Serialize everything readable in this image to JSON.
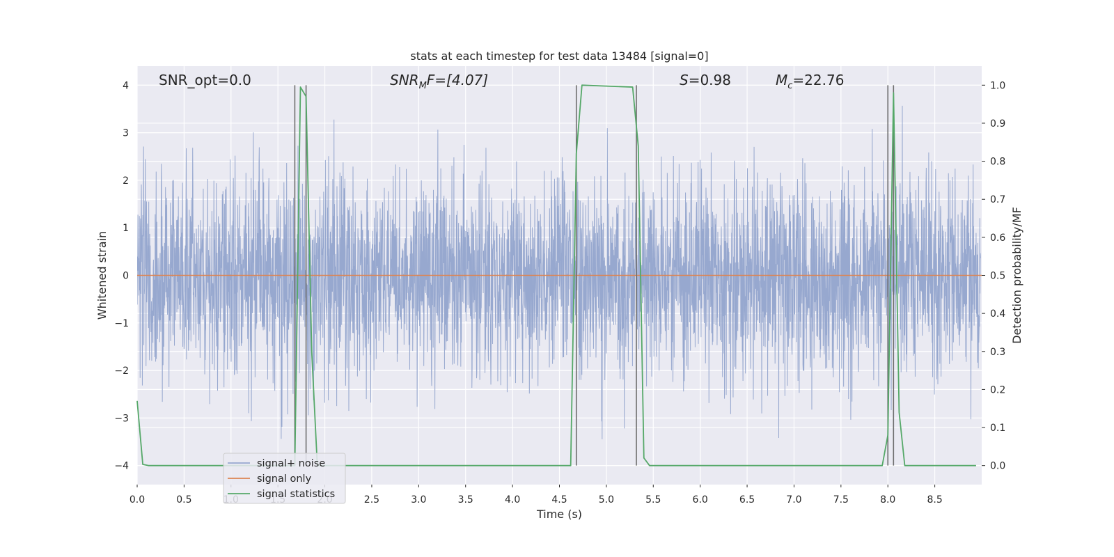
{
  "chart_data": {
    "type": "line",
    "title": "stats at each timestep for test data 13484 [signal=0]",
    "xlabel": "Time (s)",
    "ylabel_left": "Whitened strain",
    "ylabel_right": "Detection probability/MF",
    "xlim": [
      0,
      9
    ],
    "ylim_left": [
      -4.4,
      4.4
    ],
    "ylim_right": [
      -0.05,
      1.05
    ],
    "x_ticks": [
      0.0,
      0.5,
      1.0,
      1.5,
      2.0,
      2.5,
      3.0,
      3.5,
      4.0,
      4.5,
      5.0,
      5.5,
      6.0,
      6.5,
      7.0,
      7.5,
      8.0,
      8.5
    ],
    "x_tick_labels": [
      "0.0",
      "0.5",
      "1.0",
      "1.5",
      "2.0",
      "2.5",
      "3.0",
      "3.5",
      "4.0",
      "4.5",
      "5.0",
      "5.5",
      "6.0",
      "6.5",
      "7.0",
      "7.5",
      "8.0",
      "8.5"
    ],
    "y_left_ticks": [
      -4,
      -3,
      -2,
      -1,
      0,
      1,
      2,
      3,
      4
    ],
    "y_left_tick_labels": [
      "−4",
      "−3",
      "−2",
      "−1",
      "0",
      "1",
      "2",
      "3",
      "4"
    ],
    "y_right_ticks": [
      0.0,
      0.1,
      0.2,
      0.3,
      0.4,
      0.5,
      0.6,
      0.7,
      0.8,
      0.9,
      1.0
    ],
    "y_right_tick_labels": [
      "0.0",
      "0.1",
      "0.2",
      "0.3",
      "0.4",
      "0.5",
      "0.6",
      "0.7",
      "0.8",
      "0.9",
      "1.0"
    ],
    "grid": true,
    "legend_position": "lower-left",
    "annotations": {
      "snr_opt": "SNR_opt=0.0",
      "snr_mf": {
        "main": "SNR",
        "sub": "M",
        "rest": "F=[4.07]"
      },
      "s_stat": {
        "main": "S",
        "rest": "=0.98"
      },
      "mc": {
        "main": "M",
        "sub": "c",
        "rest": "=22.76"
      }
    },
    "series": [
      {
        "name": "signal+ noise",
        "color": "#97a8cf",
        "kind": "noise",
        "envelope": [
          -3.9,
          4.0
        ],
        "sample_rate_hz": 2048
      },
      {
        "name": "signal only",
        "color": "#dd8452",
        "kind": "line",
        "x": [
          0,
          9
        ],
        "y": [
          0,
          0
        ]
      },
      {
        "name": "signal statistics",
        "color": "#55a868",
        "kind": "line",
        "axis": "right",
        "x": [
          0.0,
          0.06,
          0.12,
          1.68,
          1.74,
          1.8,
          1.86,
          1.92,
          4.62,
          4.68,
          4.74,
          5.28,
          5.34,
          5.4,
          5.46,
          7.94,
          8.0,
          8.06,
          8.12,
          8.18,
          8.94
        ],
        "y": [
          0.17,
          0.003,
          0.0,
          0.0,
          0.995,
          0.97,
          0.3,
          0.0,
          0.0,
          0.82,
          1.0,
          0.995,
          0.84,
          0.02,
          0.0,
          0.0,
          0.08,
          0.98,
          0.14,
          0.0,
          0.0
        ]
      }
    ],
    "vertical_lines": {
      "color": "#6e6e6e",
      "x": [
        1.68,
        1.8,
        4.68,
        5.32,
        8.0,
        8.06
      ],
      "y_range_right": [
        0.0,
        1.0
      ]
    }
  }
}
